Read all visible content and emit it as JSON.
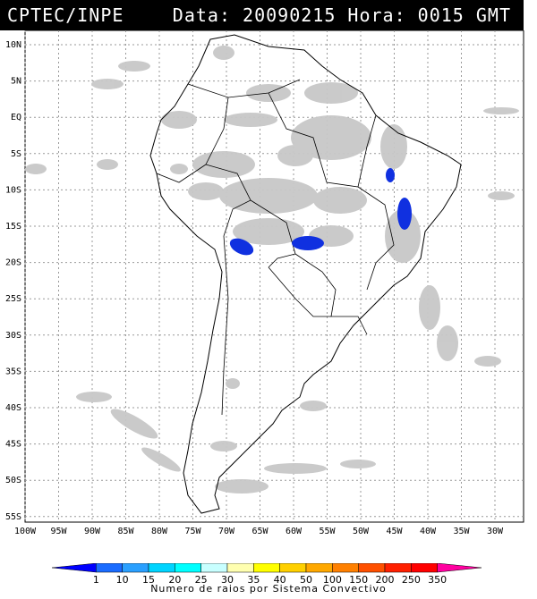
{
  "header": {
    "source": "CPTEC/INPE",
    "datetime": "Data: 20090215 Hora: 0015 GMT"
  },
  "map": {
    "lat_labels": [
      "10N",
      "5N",
      "EQ",
      "5S",
      "10S",
      "15S",
      "20S",
      "25S",
      "30S",
      "35S",
      "40S",
      "45S",
      "50S",
      "55S"
    ],
    "lon_labels": [
      "100W",
      "95W",
      "90W",
      "85W",
      "80W",
      "75W",
      "70W",
      "65W",
      "60W",
      "55W",
      "50W",
      "45W",
      "40W",
      "35W",
      "30W"
    ],
    "storm_color": "#1030e0"
  },
  "legend": {
    "values": [
      "1",
      "10",
      "15",
      "20",
      "25",
      "30",
      "35",
      "40",
      "50",
      "100",
      "150",
      "200",
      "250",
      "350"
    ],
    "colors": [
      "#0000ff",
      "#1a6cff",
      "#2aa0ff",
      "#00d4ff",
      "#00ffff",
      "#c8ffff",
      "#ffffb0",
      "#ffff00",
      "#ffd000",
      "#ffa800",
      "#ff8000",
      "#ff5000",
      "#ff2000",
      "#ff0000",
      "#ff00a0"
    ],
    "caption": "Numero de raios por Sistema Convectivo"
  }
}
